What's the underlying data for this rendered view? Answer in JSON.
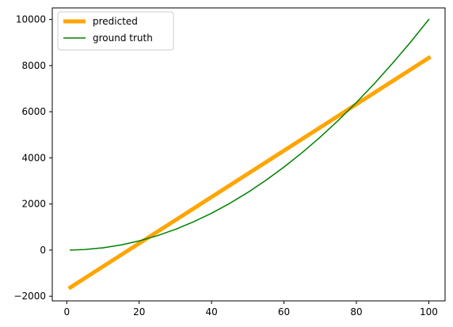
{
  "chart_data": {
    "type": "line",
    "title": "",
    "xlabel": "",
    "ylabel": "",
    "xlim": [
      -4,
      104.5
    ],
    "ylim": [
      -2200,
      10500
    ],
    "xticks": [
      0,
      20,
      40,
      60,
      80,
      100
    ],
    "yticks": [
      -2000,
      0,
      2000,
      4000,
      6000,
      8000,
      10000
    ],
    "grid": false,
    "legend": "top-left",
    "series": [
      {
        "name": "predicted",
        "color": "#ffa500",
        "style": "thick",
        "x": [
          1,
          100
        ],
        "y": [
          -1617,
          8333
        ]
      },
      {
        "name": "ground truth",
        "color": "#008000",
        "style": "thin",
        "x": [
          1,
          5,
          10,
          15,
          20,
          25,
          30,
          35,
          40,
          45,
          50,
          55,
          60,
          65,
          70,
          75,
          80,
          85,
          90,
          95,
          100
        ],
        "y": [
          1,
          25,
          100,
          225,
          400,
          625,
          900,
          1225,
          1600,
          2025,
          2500,
          3025,
          3600,
          4225,
          4900,
          5625,
          6400,
          7225,
          8100,
          9025,
          10000
        ]
      }
    ]
  }
}
